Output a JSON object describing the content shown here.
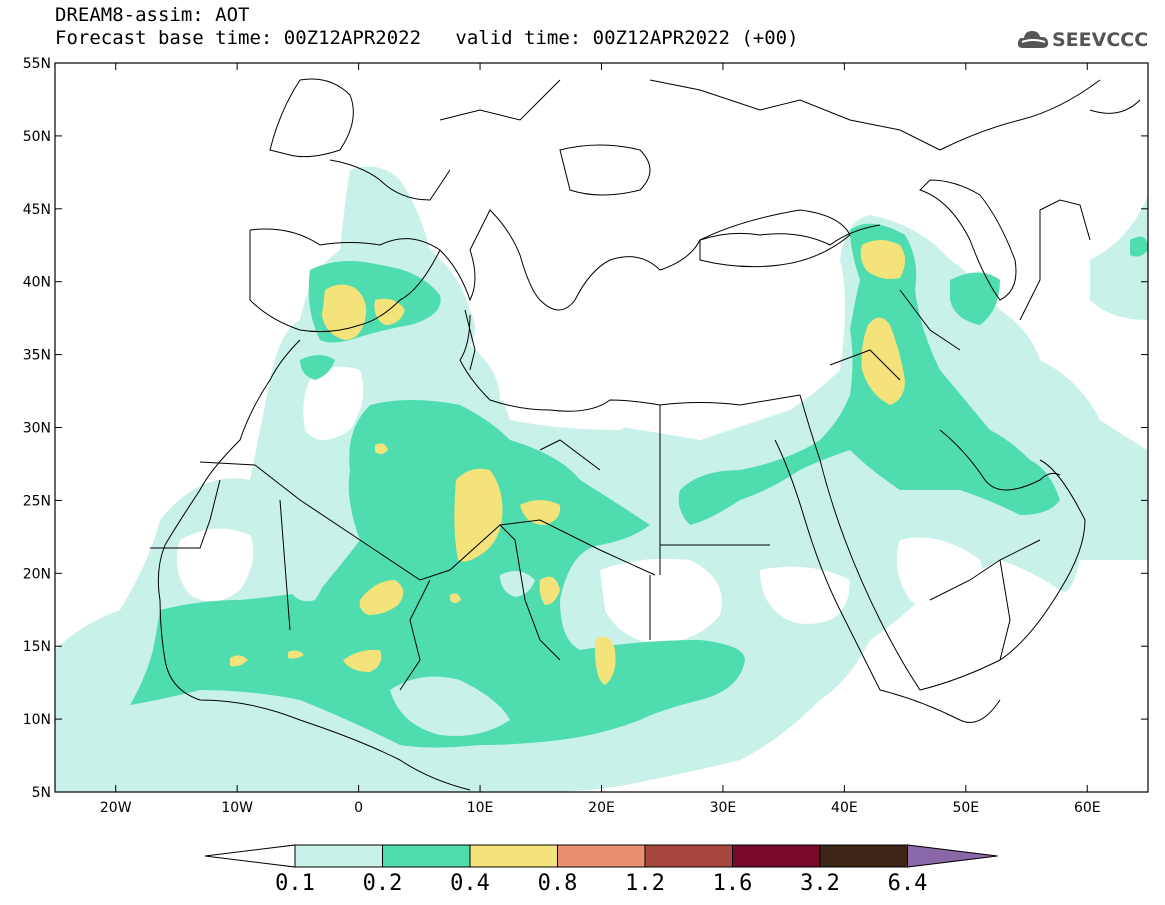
{
  "header": {
    "title": "DREAM8-assim: AOT",
    "base_time_label": "Forecast base time: 00Z12APR2022",
    "valid_time_label": "valid time: 00Z12APR2022 (+00)"
  },
  "logo": {
    "text": "SEEVCCC",
    "icon": "cloud-logo-icon"
  },
  "map": {
    "lon_min": -25,
    "lon_max": 65,
    "lat_min": 5,
    "lat_max": 55,
    "lat_labels": [
      "55N",
      "50N",
      "45N",
      "40N",
      "35N",
      "30N",
      "25N",
      "20N",
      "15N",
      "10N",
      "5N"
    ],
    "lon_labels": [
      "20W",
      "10W",
      "0",
      "10E",
      "20E",
      "30E",
      "40E",
      "50E",
      "60E"
    ]
  },
  "colorbar": {
    "labels": [
      "0.1",
      "0.2",
      "0.4",
      "0.8",
      "1.2",
      "1.6",
      "3.2",
      "6.4"
    ],
    "colors": [
      "#ffffff",
      "#c8f1ea",
      "#4fdcae",
      "#f3e37a",
      "#e89070",
      "#a8473e",
      "#7a0a2a",
      "#3d2617",
      "#8a68a8"
    ]
  },
  "colors": {
    "aot_01_02": "#c8f1ea",
    "aot_02_04": "#4fdcae",
    "aot_04_08": "#f3e37a",
    "coastline": "#000000"
  }
}
